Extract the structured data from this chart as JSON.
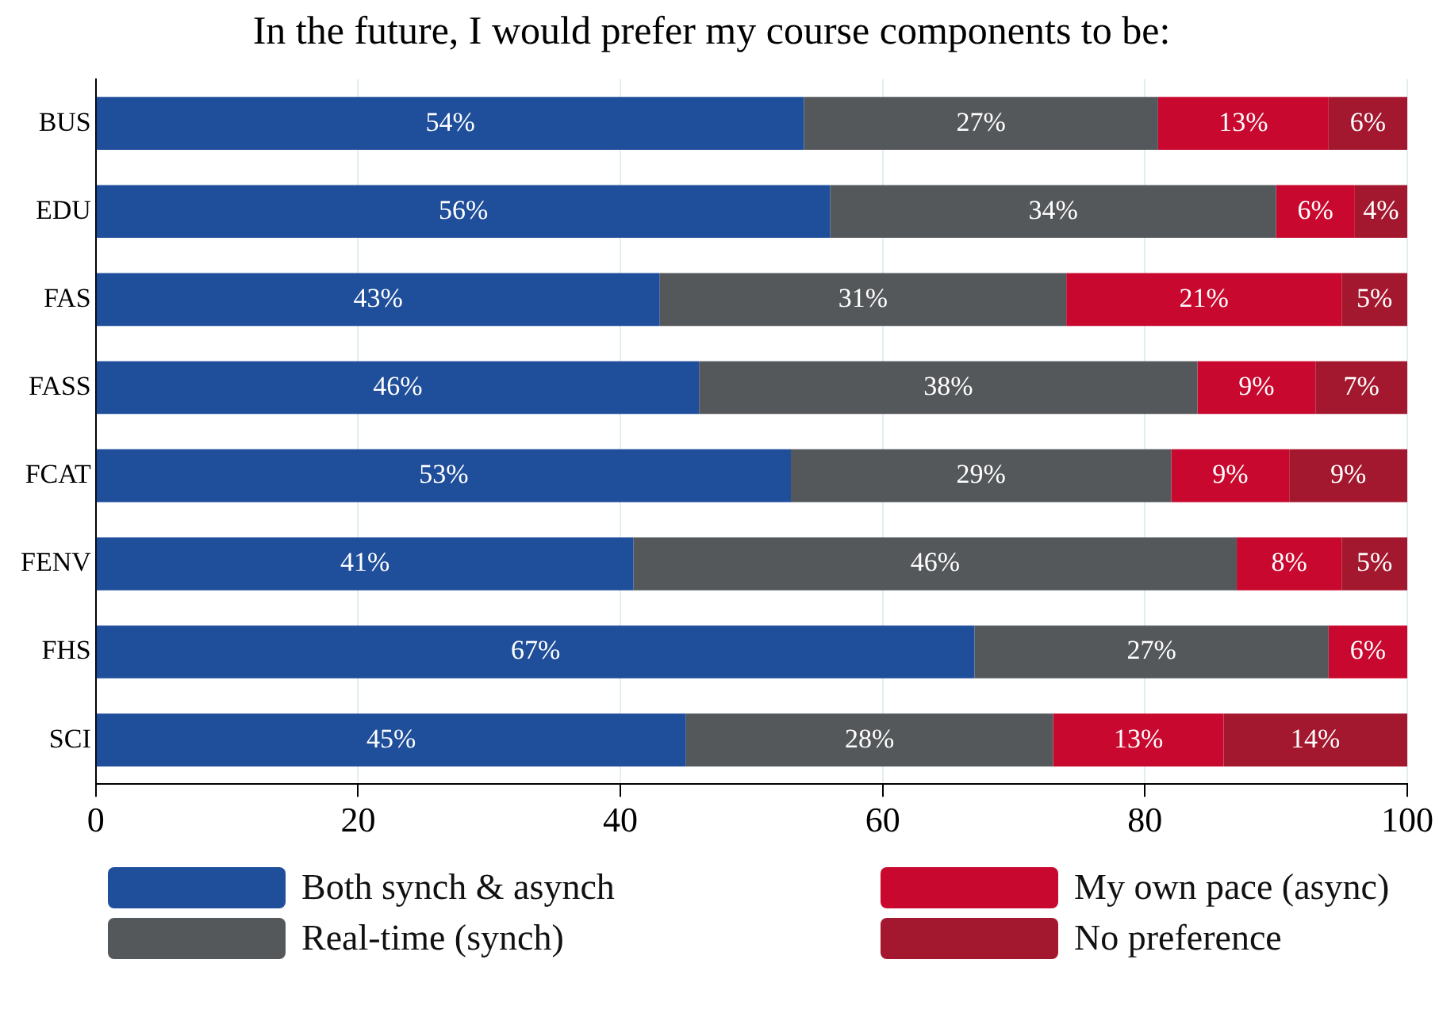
{
  "chart_data": {
    "type": "bar",
    "orientation": "horizontal",
    "stacked": true,
    "title": "In the future, I would prefer my course components to be:",
    "categories": [
      "BUS",
      "EDU",
      "FAS",
      "FASS",
      "FCAT",
      "FENV",
      "FHS",
      "SCI"
    ],
    "series": [
      {
        "name": "Both synch & asynch",
        "color": "#1f4e9a",
        "values": [
          54,
          56,
          43,
          46,
          53,
          41,
          67,
          45
        ],
        "value_labels": [
          "54%",
          "56%",
          "43%",
          "46%",
          "53%",
          "41%",
          "67%",
          "45%"
        ]
      },
      {
        "name": "Real-time (synch)",
        "color": "#55585b",
        "values": [
          27,
          34,
          31,
          38,
          29,
          46,
          27,
          28
        ],
        "value_labels": [
          "27%",
          "34%",
          "31%",
          "38%",
          "29%",
          "46%",
          "27%",
          "28%"
        ]
      },
      {
        "name": "My own pace (async)",
        "color": "#c8082e",
        "values": [
          13,
          6,
          21,
          9,
          9,
          8,
          6,
          13
        ],
        "value_labels": [
          "13%",
          "6%",
          "21%",
          "9%",
          "9%",
          "8%",
          "6%",
          "13%"
        ]
      },
      {
        "name": "No preference",
        "color": "#a3182f",
        "values": [
          6,
          4,
          5,
          7,
          9,
          5,
          null,
          14
        ],
        "value_labels": [
          "6%",
          "4%",
          "5%",
          "7%",
          "9%",
          "5%",
          null,
          "14%"
        ]
      }
    ],
    "xlim": [
      0,
      100
    ],
    "xticks": [
      0,
      20,
      40,
      60,
      80,
      100
    ],
    "grid": "x",
    "legend": "bottom"
  }
}
